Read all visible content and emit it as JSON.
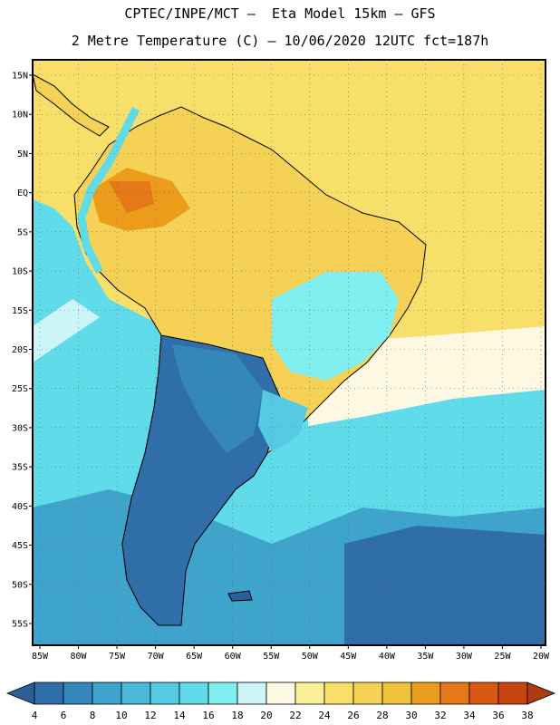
{
  "header": {
    "line1": "CPTEC/INPE/MCT –  Eta Model 15km – GFS",
    "line2": "2 Metre Temperature (C) – 10/06/2020 12UTC fct=187h"
  },
  "map": {
    "lat_labels": [
      "15N",
      "10N",
      "5N",
      "EQ",
      "5S",
      "10S",
      "15S",
      "20S",
      "25S",
      "30S",
      "35S",
      "40S",
      "45S",
      "50S",
      "55S"
    ],
    "lon_labels": [
      "85W",
      "80W",
      "75W",
      "70W",
      "65W",
      "60W",
      "55W",
      "50W",
      "45W",
      "40W",
      "35W",
      "30W",
      "25W",
      "20W"
    ]
  },
  "legend": {
    "labels": [
      "4",
      "6",
      "8",
      "10",
      "12",
      "14",
      "16",
      "18",
      "20",
      "22",
      "24",
      "26",
      "28",
      "30",
      "32",
      "34",
      "36",
      "38"
    ],
    "colors": [
      "#2b5f99",
      "#2f6ea8",
      "#3487bb",
      "#3ea4cb",
      "#4ab9d9",
      "#55cbe3",
      "#5fdbea",
      "#7fefef",
      "#cdf4f7",
      "#fdf8e2",
      "#fbf09a",
      "#f8df6a",
      "#f5d256",
      "#efc23c",
      "#ec9c1b",
      "#e57918",
      "#d85a10",
      "#c8440e",
      "#b03a10"
    ]
  }
}
